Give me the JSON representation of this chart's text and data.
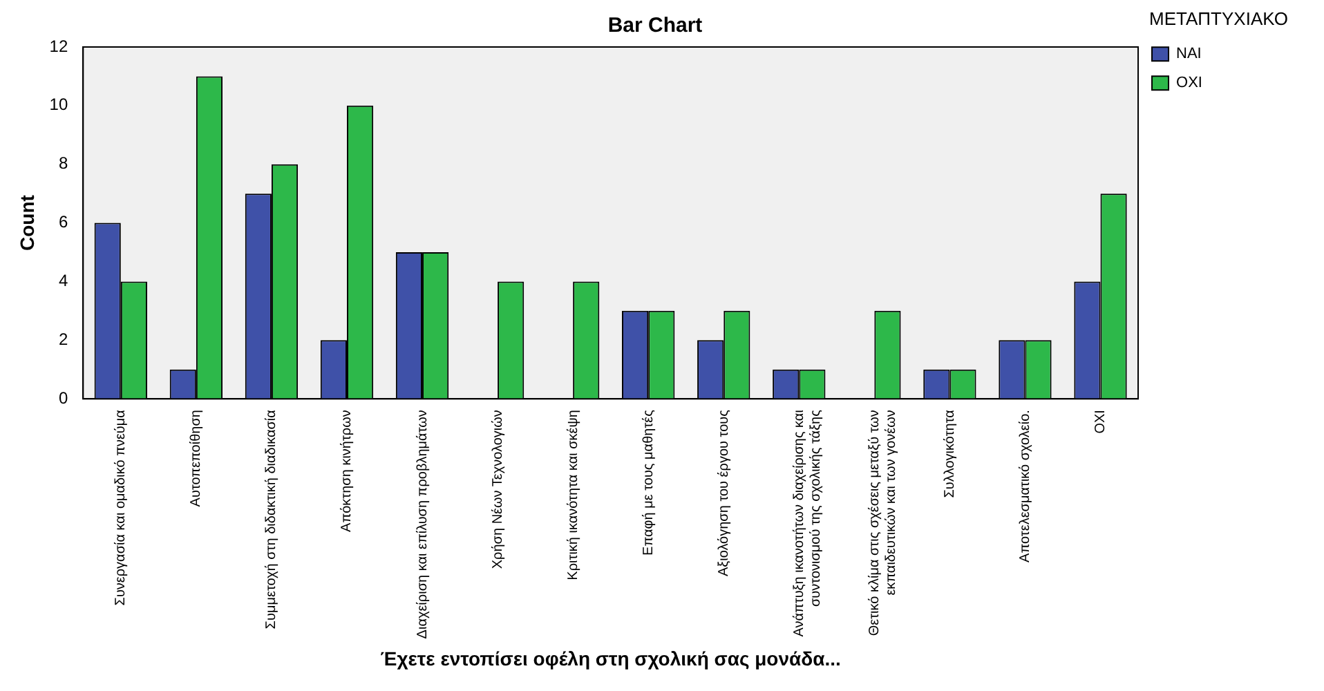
{
  "chart_data": {
    "type": "bar",
    "title": "Bar Chart",
    "xlabel": "Έχετε εντοπίσει οφέλη στη σχολική σας μονάδα...",
    "ylabel": "Count",
    "legend_title": "ΜΕΤΑΠΤΥΧΙΑΚΟ",
    "legend": "right",
    "grid": false,
    "categories": [
      "Συνεργασία και ομαδικό πνεύμα",
      "Αυτοπεποίθηση",
      "Συμμετοχή στη διδακτική διαδικασία",
      "Απόκτηση κινήτρων",
      "Διαχείριση και επίλυση προβλημάτων",
      "Χρήση Νέων Τεχνολογιών",
      "Κριτική ικανότητα και σκέψη",
      "Επαφή με τους μαθητές",
      "Αξιολόγηση του έργου τους",
      "Ανάπτυξη ικανοτήτων διαχείρισης και συντονισμού της σχολικής τάξης",
      "Θετικό κλίμα στις σχέσεις μεταξύ των εκπαιδευτικών και των γονέων",
      "Συλλογικότητα",
      "Αποτελεσματικό σχολείο.",
      "ΟΧΙ"
    ],
    "series": [
      {
        "name": "ΝΑΙ",
        "color": "#3f51a8",
        "values": [
          6,
          1,
          7,
          2,
          5,
          null,
          null,
          3,
          2,
          1,
          null,
          1,
          2,
          4
        ]
      },
      {
        "name": "ΟΧΙ",
        "color": "#2db84a",
        "values": [
          4,
          11,
          8,
          10,
          5,
          4,
          4,
          3,
          3,
          1,
          3,
          1,
          2,
          7
        ]
      }
    ],
    "ylim": [
      0,
      12
    ],
    "yticks": [
      0,
      2,
      4,
      6,
      8,
      10,
      12
    ]
  }
}
